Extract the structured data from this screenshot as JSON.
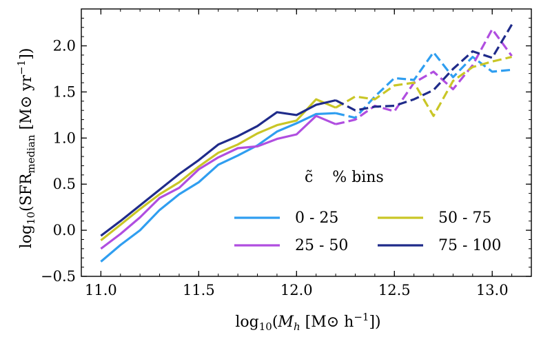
{
  "chart_data": {
    "type": "line",
    "xlabel": "log10(Mh [M⊙ h−1])",
    "ylabel": "log10(SFRmedian [M⊙ yr−1])",
    "xlim": [
      10.9,
      13.2
    ],
    "ylim": [
      -0.5,
      2.4
    ],
    "xticks": [
      "11.0",
      "11.5",
      "12.0",
      "12.5",
      "13.0"
    ],
    "yticks": [
      "−0.5",
      "0.0",
      "0.5",
      "1.0",
      "1.5",
      "2.0"
    ],
    "grid": false,
    "legend": {
      "title": "c̃    % bins",
      "placement": "lower-right",
      "columns": 2
    },
    "series": [
      {
        "name": "0 - 25",
        "color": "#2f9ef0",
        "solid": {
          "x": [
            11.0,
            11.1,
            11.2,
            11.3,
            11.4,
            11.5,
            11.6,
            11.7,
            11.8,
            11.9,
            12.0,
            12.1,
            12.2
          ],
          "y": [
            -0.34,
            -0.16,
            0.0,
            0.22,
            0.39,
            0.52,
            0.71,
            0.81,
            0.92,
            1.07,
            1.16,
            1.26,
            1.27
          ]
        },
        "dashed": {
          "x": [
            12.2,
            12.3,
            12.4,
            12.5,
            12.6,
            12.7,
            12.8,
            12.9,
            13.0,
            13.1
          ],
          "y": [
            1.27,
            1.22,
            1.45,
            1.65,
            1.63,
            1.93,
            1.66,
            1.88,
            1.72,
            1.74
          ]
        }
      },
      {
        "name": "25 - 50",
        "color": "#b04ee0",
        "solid": {
          "x": [
            11.0,
            11.1,
            11.2,
            11.3,
            11.4,
            11.5,
            11.6,
            11.7,
            11.8,
            11.9,
            12.0,
            12.1,
            12.2
          ],
          "y": [
            -0.2,
            -0.04,
            0.14,
            0.35,
            0.46,
            0.66,
            0.79,
            0.89,
            0.91,
            0.99,
            1.04,
            1.24,
            1.15
          ]
        },
        "dashed": {
          "x": [
            12.2,
            12.3,
            12.4,
            12.5,
            12.6,
            12.7,
            12.8,
            12.9,
            13.0,
            13.1
          ],
          "y": [
            1.15,
            1.2,
            1.35,
            1.29,
            1.6,
            1.72,
            1.53,
            1.79,
            2.18,
            1.89
          ]
        }
      },
      {
        "name": "50 - 75",
        "color": "#c9c626",
        "solid": {
          "x": [
            11.0,
            11.1,
            11.2,
            11.3,
            11.4,
            11.5,
            11.6,
            11.7,
            11.8,
            11.9,
            12.0,
            12.1,
            12.2
          ],
          "y": [
            -0.11,
            0.06,
            0.23,
            0.39,
            0.52,
            0.69,
            0.84,
            0.93,
            1.05,
            1.14,
            1.19,
            1.42,
            1.33
          ]
        },
        "dashed": {
          "x": [
            12.2,
            12.3,
            12.4,
            12.5,
            12.6,
            12.7,
            12.8,
            12.9,
            13.0,
            13.1
          ],
          "y": [
            1.33,
            1.45,
            1.42,
            1.57,
            1.6,
            1.24,
            1.62,
            1.77,
            1.83,
            1.88
          ]
        }
      },
      {
        "name": "75 - 100",
        "color": "#1f2b8a",
        "solid": {
          "x": [
            11.0,
            11.1,
            11.2,
            11.3,
            11.4,
            11.5,
            11.6,
            11.7,
            11.8,
            11.9,
            12.0,
            12.1,
            12.2
          ],
          "y": [
            -0.06,
            0.1,
            0.27,
            0.44,
            0.61,
            0.76,
            0.93,
            1.02,
            1.13,
            1.28,
            1.25,
            1.36,
            1.41
          ]
        },
        "dashed": {
          "x": [
            12.2,
            12.3,
            12.4,
            12.5,
            12.6,
            12.7,
            12.8,
            12.9,
            13.0,
            13.1
          ],
          "y": [
            1.41,
            1.3,
            1.34,
            1.35,
            1.42,
            1.52,
            1.75,
            1.94,
            1.87,
            2.23
          ]
        }
      }
    ]
  }
}
